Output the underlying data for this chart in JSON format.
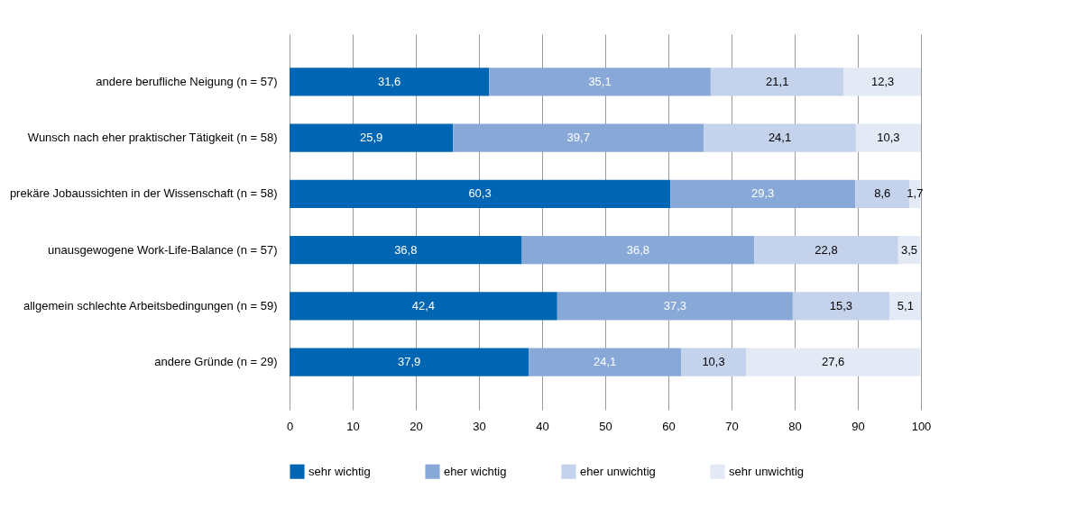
{
  "chart_data": {
    "type": "bar",
    "orientation": "horizontal",
    "stacked": true,
    "grid": "x",
    "legend": "bottom",
    "categories": [
      "andere berufliche Neigung (n = 57)",
      "Wunsch nach eher praktischer Tätigkeit (n = 58)",
      "prekäre Jobaussichten in der Wissenschaft (n = 58)",
      "unausgewogene Work-Life-Balance (n = 57)",
      "allgemein schlechte Arbeitsbedingungen (n = 59)",
      "andere Gründe (n = 29)"
    ],
    "series": [
      {
        "name": "sehr wichtig",
        "color": "#0066b3",
        "values": [
          31.6,
          25.9,
          60.3,
          36.8,
          42.4,
          37.9
        ],
        "value_labels": [
          "31,6",
          "25,9",
          "60,3",
          "36,8",
          "42,4",
          "37,9"
        ]
      },
      {
        "name": "eher wichtig",
        "color": "#88a9d8",
        "values": [
          35.1,
          39.7,
          29.3,
          36.8,
          37.3,
          24.1
        ],
        "value_labels": [
          "35,1",
          "39,7",
          "29,3",
          "36,8",
          "37,3",
          "24,1"
        ]
      },
      {
        "name": "eher unwichtig",
        "color": "#c4d2ec",
        "values": [
          21.1,
          24.1,
          8.6,
          22.8,
          15.3,
          10.3
        ],
        "value_labels": [
          "21,1",
          "24,1",
          "8,6",
          "22,8",
          "15,3",
          "10,3"
        ]
      },
      {
        "name": "sehr unwichtig",
        "color": "#e3eaf6",
        "values": [
          12.3,
          10.3,
          1.7,
          3.5,
          5.1,
          27.6
        ],
        "value_labels": [
          "12,3",
          "10,3",
          "1,7",
          "3,5",
          "5,1",
          "27,6"
        ]
      }
    ],
    "xlim": [
      0,
      100
    ],
    "xticks": [
      0,
      10,
      20,
      30,
      40,
      50,
      60,
      70,
      80,
      90,
      100
    ]
  }
}
